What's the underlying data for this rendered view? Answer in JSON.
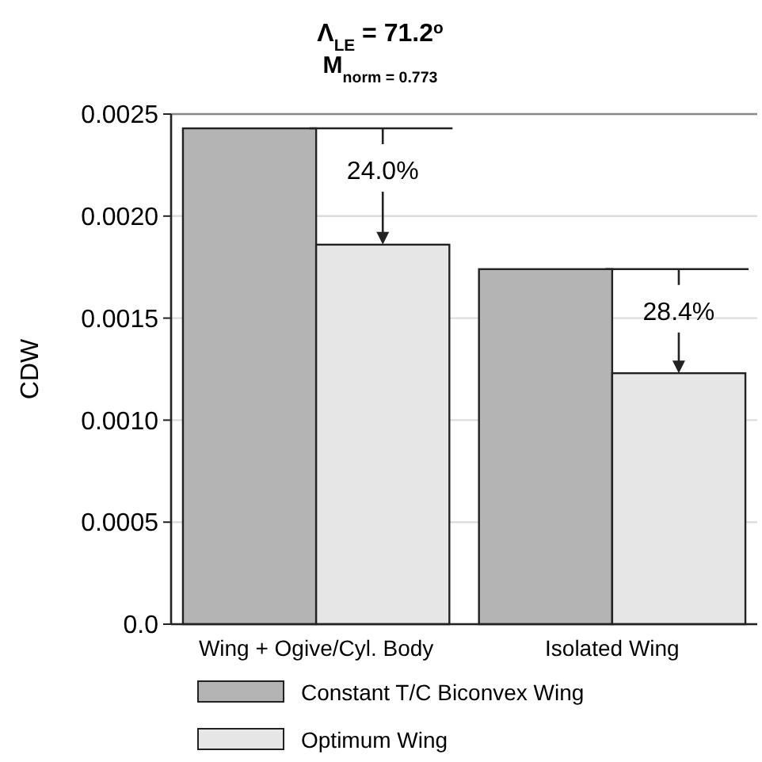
{
  "chart_data": {
    "type": "bar",
    "title": "Λ$_{LE}$ = 71.2$^{o}$",
    "subtitle": "M$_{norm = 0.773}$",
    "ylabel": "CDW",
    "categories": [
      "Wing + Ogive/Cyl. Body",
      "Isolated Wing"
    ],
    "series": [
      {
        "name": "Constant T/C Biconvex Wing",
        "color": "#b4b4b4",
        "values": [
          0.00243,
          0.00174
        ]
      },
      {
        "name": "Optimum Wing",
        "color": "#e6e6e6",
        "values": [
          0.00186,
          0.00123
        ]
      }
    ],
    "ylim": [
      0,
      0.0025
    ],
    "yticks": [
      {
        "value": 0,
        "label": "0.0"
      },
      {
        "value": 0.0005,
        "label": "0.0005"
      },
      {
        "value": 0.001,
        "label": "0.0010"
      },
      {
        "value": 0.0015,
        "label": "0.0015"
      },
      {
        "value": 0.002,
        "label": "0.0020"
      },
      {
        "value": 0.0025,
        "label": "0.0025"
      }
    ],
    "grid": "y",
    "legend": "bottom",
    "annotations": [
      {
        "text": "24.0%",
        "x": "Wing + Ogive/Cyl. Body",
        "y": 0.00243
      },
      {
        "text": "28.4%",
        "x": "Isolated Wing",
        "y": 0.00174
      }
    ]
  }
}
